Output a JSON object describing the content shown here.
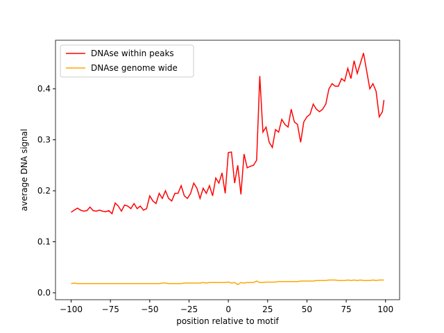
{
  "chart_data": {
    "type": "line",
    "x": [
      -100,
      -98,
      -96,
      -94,
      -92,
      -90,
      -88,
      -86,
      -84,
      -82,
      -80,
      -78,
      -76,
      -74,
      -72,
      -70,
      -68,
      -66,
      -64,
      -62,
      -60,
      -58,
      -56,
      -54,
      -52,
      -50,
      -48,
      -46,
      -44,
      -42,
      -40,
      -38,
      -36,
      -34,
      -32,
      -30,
      -28,
      -26,
      -24,
      -22,
      -20,
      -18,
      -16,
      -14,
      -12,
      -10,
      -8,
      -6,
      -4,
      -2,
      0,
      2,
      4,
      6,
      8,
      10,
      12,
      14,
      16,
      18,
      20,
      22,
      24,
      26,
      28,
      30,
      32,
      34,
      36,
      38,
      40,
      42,
      44,
      46,
      48,
      50,
      52,
      54,
      56,
      58,
      60,
      62,
      64,
      66,
      68,
      70,
      72,
      74,
      76,
      78,
      80,
      82,
      84,
      86,
      88,
      90,
      92,
      94,
      96,
      98,
      99
    ],
    "series": [
      {
        "name": "DNAse within peaks",
        "color": "#ff0000",
        "values": [
          0.158,
          0.162,
          0.166,
          0.162,
          0.16,
          0.161,
          0.168,
          0.161,
          0.16,
          0.162,
          0.16,
          0.159,
          0.161,
          0.155,
          0.176,
          0.17,
          0.16,
          0.172,
          0.17,
          0.165,
          0.175,
          0.165,
          0.17,
          0.162,
          0.165,
          0.19,
          0.18,
          0.175,
          0.195,
          0.185,
          0.2,
          0.185,
          0.18,
          0.195,
          0.195,
          0.21,
          0.19,
          0.185,
          0.195,
          0.215,
          0.205,
          0.185,
          0.205,
          0.195,
          0.21,
          0.19,
          0.225,
          0.215,
          0.235,
          0.195,
          0.275,
          0.276,
          0.215,
          0.25,
          0.193,
          0.272,
          0.245,
          0.248,
          0.25,
          0.26,
          0.425,
          0.315,
          0.325,
          0.295,
          0.285,
          0.32,
          0.315,
          0.34,
          0.33,
          0.325,
          0.36,
          0.335,
          0.33,
          0.295,
          0.335,
          0.345,
          0.35,
          0.37,
          0.36,
          0.355,
          0.36,
          0.37,
          0.4,
          0.41,
          0.405,
          0.405,
          0.42,
          0.415,
          0.44,
          0.42,
          0.455,
          0.43,
          0.45,
          0.47,
          0.435,
          0.4,
          0.41,
          0.395,
          0.345,
          0.355,
          0.378
        ]
      },
      {
        "name": "DNAse genome wide",
        "color": "#ffa500",
        "values": [
          0.018,
          0.019,
          0.018,
          0.018,
          0.018,
          0.018,
          0.018,
          0.018,
          0.018,
          0.018,
          0.018,
          0.018,
          0.018,
          0.018,
          0.018,
          0.018,
          0.018,
          0.018,
          0.018,
          0.018,
          0.018,
          0.018,
          0.018,
          0.018,
          0.018,
          0.018,
          0.018,
          0.018,
          0.018,
          0.019,
          0.019,
          0.018,
          0.018,
          0.018,
          0.018,
          0.018,
          0.019,
          0.019,
          0.019,
          0.019,
          0.019,
          0.019,
          0.02,
          0.019,
          0.02,
          0.02,
          0.02,
          0.02,
          0.02,
          0.02,
          0.021,
          0.019,
          0.02,
          0.016,
          0.02,
          0.019,
          0.02,
          0.02,
          0.02,
          0.023,
          0.02,
          0.02,
          0.021,
          0.021,
          0.021,
          0.021,
          0.022,
          0.022,
          0.022,
          0.022,
          0.022,
          0.022,
          0.022,
          0.023,
          0.023,
          0.023,
          0.023,
          0.023,
          0.024,
          0.024,
          0.024,
          0.024,
          0.025,
          0.025,
          0.025,
          0.024,
          0.024,
          0.024,
          0.025,
          0.024,
          0.025,
          0.024,
          0.025,
          0.024,
          0.024,
          0.024,
          0.025,
          0.024,
          0.025,
          0.025,
          0.025
        ]
      }
    ],
    "xlabel": "position relative to motif",
    "ylabel": "average DNA signal",
    "xlim": [
      -109.95,
      108.95
    ],
    "ylim": [
      -0.0136,
      0.4952
    ],
    "xticks": [
      {
        "value": -100,
        "label": "−100"
      },
      {
        "value": -75,
        "label": "−75"
      },
      {
        "value": -50,
        "label": "−50"
      },
      {
        "value": -25,
        "label": "−25"
      },
      0,
      25,
      50,
      75,
      100
    ],
    "yticks": [
      {
        "value": 0,
        "label": "0.0"
      },
      0.1,
      0.2,
      0.3,
      0.4
    ],
    "legend": "upper left"
  }
}
